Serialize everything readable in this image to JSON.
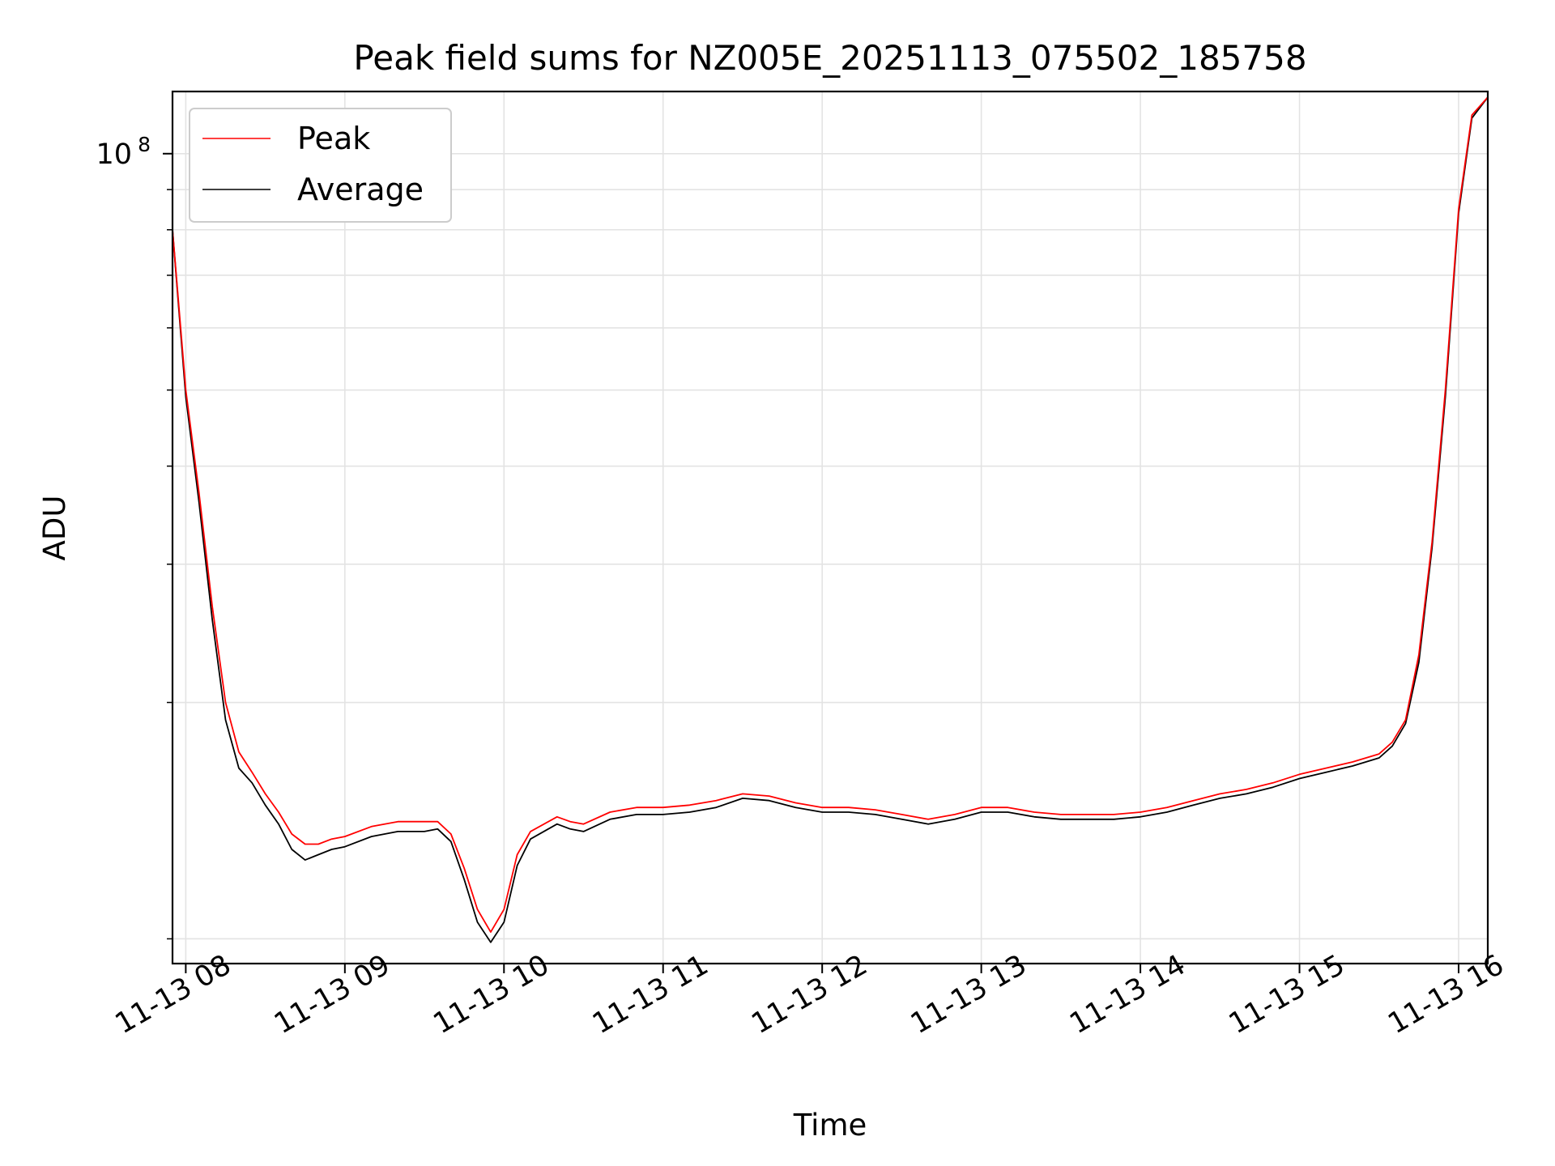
{
  "chart_data": {
    "type": "line",
    "title": "Peak field sums for NZ005E_20251113_075502_185758",
    "xlabel": "Time",
    "ylabel": "ADU",
    "yscale": "log",
    "xlim": [
      "2025-11-13 07:55",
      "2025-11-13 16:11"
    ],
    "ylim": [
      9300000,
      120000000
    ],
    "grid": true,
    "legend": "upper-left",
    "x_ticks": [
      "11-13 08",
      "11-13 09",
      "11-13 10",
      "11-13 11",
      "11-13 12",
      "11-13 13",
      "11-13 14",
      "11-13 15",
      "11-13 16"
    ],
    "y_ticks": [
      {
        "value": 100000000,
        "base": "10",
        "exp": "8"
      }
    ],
    "series": [
      {
        "name": "Peak",
        "color": "#ff0000",
        "points": [
          [
            "2025-11-13 07:55",
            80000000
          ],
          [
            "2025-11-13 08:00",
            50000000
          ],
          [
            "2025-11-13 08:05",
            37000000
          ],
          [
            "2025-11-13 08:10",
            26500000
          ],
          [
            "2025-11-13 08:15",
            20000000
          ],
          [
            "2025-11-13 08:20",
            17300000
          ],
          [
            "2025-11-13 08:25",
            16300000
          ],
          [
            "2025-11-13 08:30",
            15300000
          ],
          [
            "2025-11-13 08:35",
            14500000
          ],
          [
            "2025-11-13 08:40",
            13600000
          ],
          [
            "2025-11-13 08:45",
            13200000
          ],
          [
            "2025-11-13 08:50",
            13200000
          ],
          [
            "2025-11-13 08:55",
            13400000
          ],
          [
            "2025-11-13 09:00",
            13500000
          ],
          [
            "2025-11-13 09:10",
            13900000
          ],
          [
            "2025-11-13 09:20",
            14100000
          ],
          [
            "2025-11-13 09:30",
            14100000
          ],
          [
            "2025-11-13 09:35",
            14100000
          ],
          [
            "2025-11-13 09:40",
            13600000
          ],
          [
            "2025-11-13 09:45",
            12300000
          ],
          [
            "2025-11-13 09:50",
            10900000
          ],
          [
            "2025-11-13 09:55",
            10200000
          ],
          [
            "2025-11-13 10:00",
            10900000
          ],
          [
            "2025-11-13 10:05",
            12800000
          ],
          [
            "2025-11-13 10:10",
            13700000
          ],
          [
            "2025-11-13 10:20",
            14300000
          ],
          [
            "2025-11-13 10:25",
            14100000
          ],
          [
            "2025-11-13 10:30",
            14000000
          ],
          [
            "2025-11-13 10:40",
            14500000
          ],
          [
            "2025-11-13 10:50",
            14700000
          ],
          [
            "2025-11-13 11:00",
            14700000
          ],
          [
            "2025-11-13 11:10",
            14800000
          ],
          [
            "2025-11-13 11:20",
            15000000
          ],
          [
            "2025-11-13 11:30",
            15300000
          ],
          [
            "2025-11-13 11:40",
            15200000
          ],
          [
            "2025-11-13 11:50",
            14900000
          ],
          [
            "2025-11-13 12:00",
            14700000
          ],
          [
            "2025-11-13 12:10",
            14700000
          ],
          [
            "2025-11-13 12:20",
            14600000
          ],
          [
            "2025-11-13 12:30",
            14400000
          ],
          [
            "2025-11-13 12:40",
            14200000
          ],
          [
            "2025-11-13 12:50",
            14400000
          ],
          [
            "2025-11-13 13:00",
            14700000
          ],
          [
            "2025-11-13 13:10",
            14700000
          ],
          [
            "2025-11-13 13:20",
            14500000
          ],
          [
            "2025-11-13 13:30",
            14400000
          ],
          [
            "2025-11-13 13:40",
            14400000
          ],
          [
            "2025-11-13 13:50",
            14400000
          ],
          [
            "2025-11-13 14:00",
            14500000
          ],
          [
            "2025-11-13 14:10",
            14700000
          ],
          [
            "2025-11-13 14:20",
            15000000
          ],
          [
            "2025-11-13 14:30",
            15300000
          ],
          [
            "2025-11-13 14:40",
            15500000
          ],
          [
            "2025-11-13 14:50",
            15800000
          ],
          [
            "2025-11-13 15:00",
            16200000
          ],
          [
            "2025-11-13 15:10",
            16500000
          ],
          [
            "2025-11-13 15:20",
            16800000
          ],
          [
            "2025-11-13 15:30",
            17200000
          ],
          [
            "2025-11-13 15:35",
            17800000
          ],
          [
            "2025-11-13 15:40",
            19000000
          ],
          [
            "2025-11-13 15:45",
            23000000
          ],
          [
            "2025-11-13 15:50",
            32000000
          ],
          [
            "2025-11-13 15:55",
            50000000
          ],
          [
            "2025-11-13 16:00",
            85000000
          ],
          [
            "2025-11-13 16:05",
            112000000
          ],
          [
            "2025-11-13 16:11",
            118000000
          ]
        ]
      },
      {
        "name": "Average",
        "color": "#000000",
        "points": [
          [
            "2025-11-13 07:55",
            80000000
          ],
          [
            "2025-11-13 08:00",
            49000000
          ],
          [
            "2025-11-13 08:05",
            36000000
          ],
          [
            "2025-11-13 08:10",
            25500000
          ],
          [
            "2025-11-13 08:15",
            19000000
          ],
          [
            "2025-11-13 08:20",
            16500000
          ],
          [
            "2025-11-13 08:25",
            15800000
          ],
          [
            "2025-11-13 08:30",
            14800000
          ],
          [
            "2025-11-13 08:35",
            14000000
          ],
          [
            "2025-11-13 08:40",
            13000000
          ],
          [
            "2025-11-13 08:45",
            12600000
          ],
          [
            "2025-11-13 08:50",
            12800000
          ],
          [
            "2025-11-13 08:55",
            13000000
          ],
          [
            "2025-11-13 09:00",
            13100000
          ],
          [
            "2025-11-13 09:10",
            13500000
          ],
          [
            "2025-11-13 09:20",
            13700000
          ],
          [
            "2025-11-13 09:30",
            13700000
          ],
          [
            "2025-11-13 09:35",
            13800000
          ],
          [
            "2025-11-13 09:40",
            13300000
          ],
          [
            "2025-11-13 09:45",
            11900000
          ],
          [
            "2025-11-13 09:50",
            10500000
          ],
          [
            "2025-11-13 09:55",
            9900000
          ],
          [
            "2025-11-13 10:00",
            10500000
          ],
          [
            "2025-11-13 10:05",
            12400000
          ],
          [
            "2025-11-13 10:10",
            13400000
          ],
          [
            "2025-11-13 10:20",
            14000000
          ],
          [
            "2025-11-13 10:25",
            13800000
          ],
          [
            "2025-11-13 10:30",
            13700000
          ],
          [
            "2025-11-13 10:40",
            14200000
          ],
          [
            "2025-11-13 10:50",
            14400000
          ],
          [
            "2025-11-13 11:00",
            14400000
          ],
          [
            "2025-11-13 11:10",
            14500000
          ],
          [
            "2025-11-13 11:20",
            14700000
          ],
          [
            "2025-11-13 11:30",
            15100000
          ],
          [
            "2025-11-13 11:40",
            15000000
          ],
          [
            "2025-11-13 11:50",
            14700000
          ],
          [
            "2025-11-13 12:00",
            14500000
          ],
          [
            "2025-11-13 12:10",
            14500000
          ],
          [
            "2025-11-13 12:20",
            14400000
          ],
          [
            "2025-11-13 12:30",
            14200000
          ],
          [
            "2025-11-13 12:40",
            14000000
          ],
          [
            "2025-11-13 12:50",
            14200000
          ],
          [
            "2025-11-13 13:00",
            14500000
          ],
          [
            "2025-11-13 13:10",
            14500000
          ],
          [
            "2025-11-13 13:20",
            14300000
          ],
          [
            "2025-11-13 13:30",
            14200000
          ],
          [
            "2025-11-13 13:40",
            14200000
          ],
          [
            "2025-11-13 13:50",
            14200000
          ],
          [
            "2025-11-13 14:00",
            14300000
          ],
          [
            "2025-11-13 14:10",
            14500000
          ],
          [
            "2025-11-13 14:20",
            14800000
          ],
          [
            "2025-11-13 14:30",
            15100000
          ],
          [
            "2025-11-13 14:40",
            15300000
          ],
          [
            "2025-11-13 14:50",
            15600000
          ],
          [
            "2025-11-13 15:00",
            16000000
          ],
          [
            "2025-11-13 15:10",
            16300000
          ],
          [
            "2025-11-13 15:20",
            16600000
          ],
          [
            "2025-11-13 15:30",
            17000000
          ],
          [
            "2025-11-13 15:35",
            17600000
          ],
          [
            "2025-11-13 15:40",
            18800000
          ],
          [
            "2025-11-13 15:45",
            22500000
          ],
          [
            "2025-11-13 15:50",
            31500000
          ],
          [
            "2025-11-13 15:55",
            49000000
          ],
          [
            "2025-11-13 16:00",
            84000000
          ],
          [
            "2025-11-13 16:05",
            111000000
          ],
          [
            "2025-11-13 16:11",
            118000000
          ]
        ]
      }
    ]
  }
}
